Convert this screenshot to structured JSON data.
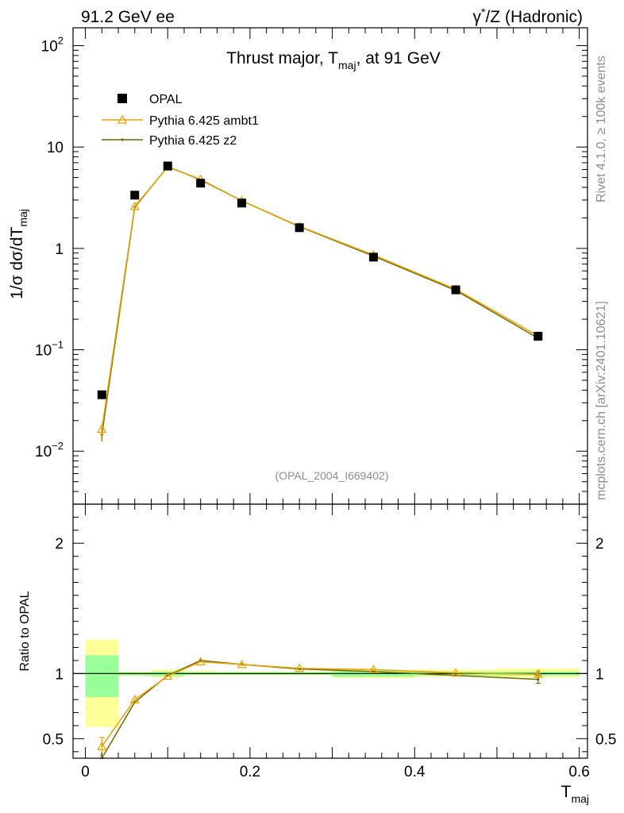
{
  "header": {
    "left": "91.2 GeV ee",
    "right_base": "γ",
    "right_sup": "*",
    "right_rest": "/Z (Hadronic)"
  },
  "side_labels": {
    "rivet": "Rivet 4.1.0, ≥ 100k events",
    "mcplots": "mcplots.cern.ch [arXiv:2401.10621]"
  },
  "colors": {
    "data": "#000000",
    "ambt1": "#e8a000",
    "z2": "#6b6b00",
    "band_inner": "#99ff99",
    "band_outer": "#ffff99"
  },
  "chart_data": [
    {
      "type": "line",
      "title": "Thrust major, T",
      "title_sub": "maj",
      "title_suffix": ", at 91 GeV",
      "ylabel": "1/σ  dσ/dT",
      "ylabel_sub": "maj",
      "yscale": "log",
      "ylim": [
        0.003,
        150
      ],
      "xlim": [
        -0.015,
        0.61
      ],
      "y_ticks": [
        {
          "v": 0.01,
          "base": "10",
          "exp": "−2"
        },
        {
          "v": 0.1,
          "base": "10",
          "exp": "−1"
        },
        {
          "v": 1,
          "base": "1",
          "exp": ""
        },
        {
          "v": 10,
          "base": "10",
          "exp": ""
        },
        {
          "v": 100,
          "base": "10",
          "exp": "2"
        }
      ],
      "watermark": "(OPAL_2004_I669402)",
      "legend_position": "top-left",
      "series": [
        {
          "name": "OPAL",
          "marker": "square",
          "x": [
            0.02,
            0.06,
            0.1,
            0.14,
            0.19,
            0.26,
            0.35,
            0.45,
            0.55
          ],
          "y": [
            0.036,
            3.35,
            6.5,
            4.4,
            2.8,
            1.6,
            0.82,
            0.39,
            0.136
          ]
        },
        {
          "name": "Pythia 6.425 ambt1",
          "marker": "triangle",
          "x": [
            0.02,
            0.06,
            0.1,
            0.14,
            0.19,
            0.26,
            0.35,
            0.45,
            0.55
          ],
          "y": [
            0.0165,
            2.6,
            6.35,
            4.8,
            2.95,
            1.65,
            0.86,
            0.395,
            0.137
          ],
          "err": [
            0.0025,
            0,
            0,
            0,
            0,
            0,
            0,
            0,
            0
          ]
        },
        {
          "name": "Pythia 6.425 z2",
          "marker": "dot",
          "x": [
            0.02,
            0.06,
            0.1,
            0.14,
            0.19,
            0.26,
            0.35,
            0.45,
            0.55
          ],
          "y": [
            0.0145,
            2.55,
            6.4,
            4.75,
            2.95,
            1.64,
            0.84,
            0.385,
            0.13
          ],
          "err": [
            0.002,
            0,
            0,
            0,
            0,
            0,
            0,
            0,
            0
          ]
        }
      ]
    },
    {
      "type": "line",
      "ylabel": "Ratio to OPAL",
      "xlabel": "T",
      "xlabel_sub": "maj",
      "ylim": [
        0.35,
        2.3
      ],
      "xlim": [
        -0.015,
        0.61
      ],
      "y_ticks": [
        0.5,
        1,
        2
      ],
      "x_ticks": [
        0,
        0.2,
        0.4,
        0.6
      ],
      "x_tick_labels": [
        "0",
        "0.2",
        "0.4",
        "0.6"
      ],
      "bands": [
        {
          "x0": 0.0,
          "x1": 0.04,
          "inner": [
            0.82,
            1.14
          ],
          "outer": [
            0.59,
            1.26
          ]
        },
        {
          "x0": 0.04,
          "x1": 0.08,
          "inner": [
            0.985,
            1.01
          ],
          "outer": [
            0.98,
            1.015
          ]
        },
        {
          "x0": 0.08,
          "x1": 0.12,
          "inner": [
            0.98,
            1.015
          ],
          "outer": [
            0.97,
            1.03
          ]
        },
        {
          "x0": 0.12,
          "x1": 0.16,
          "inner": [
            0.99,
            1.01
          ],
          "outer": [
            0.985,
            1.02
          ]
        },
        {
          "x0": 0.16,
          "x1": 0.22,
          "inner": [
            0.99,
            1.01
          ],
          "outer": [
            0.985,
            1.015
          ]
        },
        {
          "x0": 0.22,
          "x1": 0.3,
          "inner": [
            0.99,
            1.01
          ],
          "outer": [
            0.985,
            1.015
          ]
        },
        {
          "x0": 0.3,
          "x1": 0.4,
          "inner": [
            0.975,
            1.02
          ],
          "outer": [
            0.965,
            1.03
          ]
        },
        {
          "x0": 0.4,
          "x1": 0.5,
          "inner": [
            0.985,
            1.015
          ],
          "outer": [
            0.975,
            1.03
          ]
        },
        {
          "x0": 0.5,
          "x1": 0.6,
          "inner": [
            0.985,
            1.015
          ],
          "outer": [
            0.97,
            1.04
          ]
        }
      ],
      "series": [
        {
          "name": "Pythia 6.425 ambt1",
          "marker": "triangle",
          "x": [
            0.02,
            0.06,
            0.1,
            0.14,
            0.19,
            0.26,
            0.35,
            0.45,
            0.55
          ],
          "y": [
            0.44,
            0.8,
            0.98,
            1.09,
            1.07,
            1.04,
            1.03,
            1.005,
            0.995
          ],
          "err": [
            0.07,
            0,
            0,
            0,
            0,
            0,
            0,
            0,
            0.025
          ]
        },
        {
          "name": "Pythia 6.425 z2",
          "marker": "dot",
          "x": [
            0.02,
            0.06,
            0.1,
            0.14,
            0.19,
            0.26,
            0.35,
            0.45,
            0.55
          ],
          "y": [
            0.3,
            0.78,
            0.985,
            1.1,
            1.07,
            1.035,
            1.015,
            0.985,
            0.955
          ],
          "err": [
            0.05,
            0,
            0,
            0,
            0,
            0,
            0,
            0,
            0.03
          ]
        }
      ]
    }
  ]
}
